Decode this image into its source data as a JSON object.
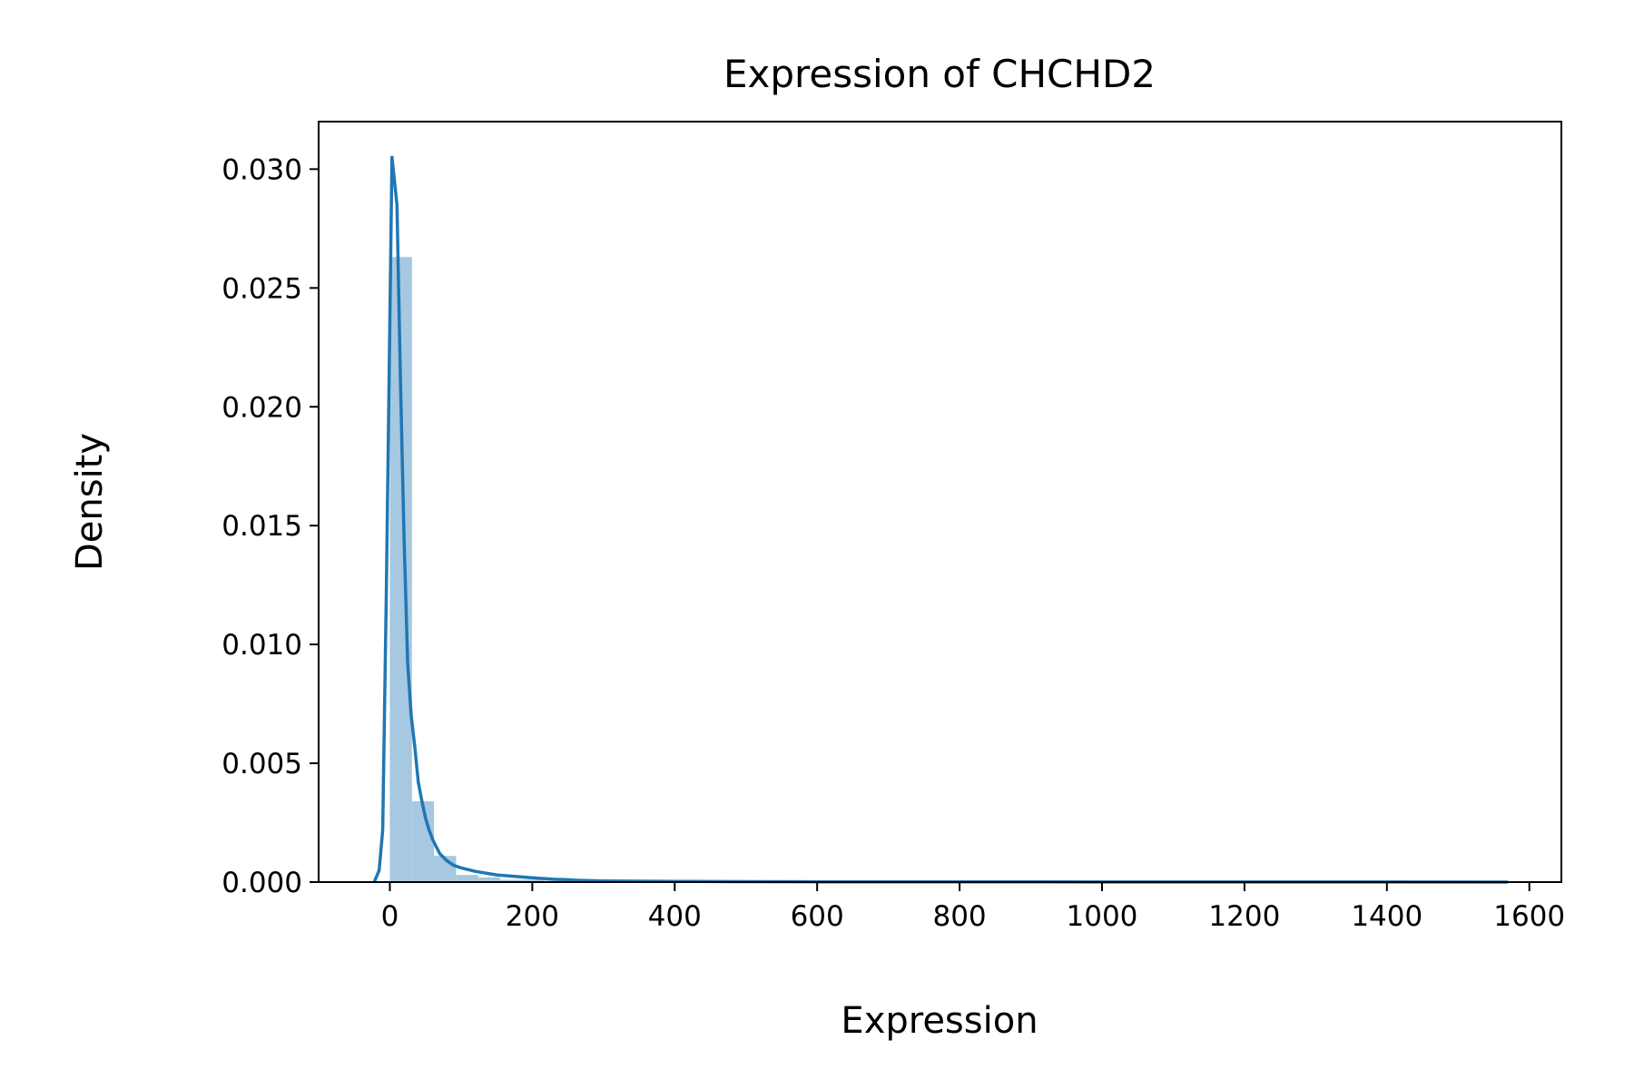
{
  "chart_data": {
    "type": "area",
    "title": "Expression of CHCHD2",
    "xlabel": "Expression",
    "ylabel": "Density",
    "xlim": [
      -100,
      1645
    ],
    "ylim": [
      0,
      0.032
    ],
    "grid": false,
    "legend": "none",
    "x_ticks": [
      0,
      200,
      400,
      600,
      800,
      1000,
      1200,
      1400,
      1600
    ],
    "x_tick_labels": [
      "0",
      "200",
      "400",
      "600",
      "800",
      "1000",
      "1200",
      "1400",
      "1600"
    ],
    "y_ticks": [
      0.0,
      0.005,
      0.01,
      0.015,
      0.02,
      0.025,
      0.03
    ],
    "y_tick_labels": [
      "0.000",
      "0.005",
      "0.010",
      "0.015",
      "0.020",
      "0.025",
      "0.030"
    ],
    "colors": {
      "histogram": "#a6c8e0",
      "kde": "#1f77b4"
    },
    "histogram": {
      "bins": [
        {
          "x0": 0,
          "x1": 31,
          "density": 0.0263
        },
        {
          "x0": 31,
          "x1": 62,
          "density": 0.0034
        },
        {
          "x0": 62,
          "x1": 93,
          "density": 0.0011
        },
        {
          "x0": 93,
          "x1": 124,
          "density": 0.0003
        },
        {
          "x0": 124,
          "x1": 155,
          "density": 0.0002
        },
        {
          "x0": 155,
          "x1": 186,
          "density": 0.0001
        },
        {
          "x0": 186,
          "x1": 217,
          "density": 0.0001
        },
        {
          "x0": 217,
          "x1": 248,
          "density": 5e-05
        },
        {
          "x0": 248,
          "x1": 279,
          "density": 5e-05
        }
      ]
    },
    "kde": {
      "x": [
        -22,
        -15,
        -10,
        -5,
        3,
        10,
        15,
        20,
        25,
        30,
        35,
        40,
        45,
        50,
        55,
        60,
        70,
        80,
        90,
        100,
        120,
        150,
        200,
        230,
        250,
        260,
        300,
        400,
        500,
        600,
        800,
        1000,
        1200,
        1400,
        1570
      ],
      "y": [
        0.0,
        0.0005,
        0.0022,
        0.012,
        0.0305,
        0.0285,
        0.021,
        0.0145,
        0.0092,
        0.007,
        0.0057,
        0.0042,
        0.0034,
        0.0027,
        0.0022,
        0.0018,
        0.0012,
        0.0009,
        0.0007,
        0.0006,
        0.00045,
        0.0003,
        0.00018,
        0.00012,
        0.0001,
        8e-05,
        5e-05,
        3e-05,
        2e-05,
        1e-05,
        1e-05,
        5e-06,
        3e-06,
        2e-06,
        1e-06
      ]
    }
  }
}
